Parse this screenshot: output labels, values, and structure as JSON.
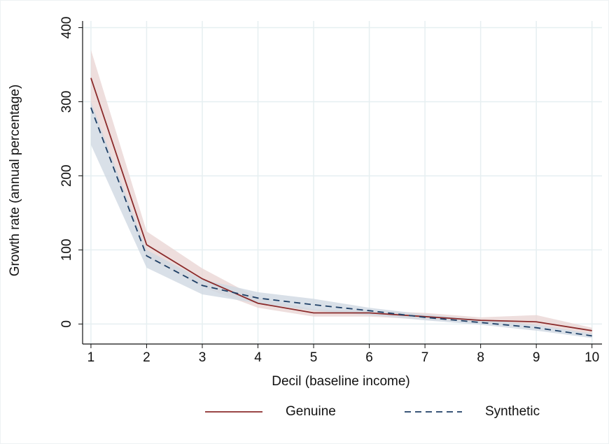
{
  "chart_data": {
    "type": "line",
    "x_label": "Decil (baseline income)",
    "y_label": "Growth rate (annual percentage)",
    "x": [
      1,
      2,
      3,
      4,
      5,
      6,
      7,
      8,
      9,
      10
    ],
    "series": [
      {
        "name": "Genuine",
        "color": "#8b2b2b",
        "line_style": "solid",
        "band_color": "#ead6d4",
        "values": [
          332,
          107,
          61,
          28,
          15,
          15,
          10,
          5,
          3,
          -9
        ],
        "lower": [
          295,
          90,
          50,
          22,
          10,
          10,
          6,
          2,
          -2,
          -14
        ],
        "upper": [
          370,
          125,
          75,
          35,
          20,
          18,
          15,
          9,
          12,
          -5
        ]
      },
      {
        "name": "Synthetic",
        "color": "#1e3f66",
        "line_style": "dashed",
        "band_color": "#cfd8e2",
        "values": [
          292,
          92,
          52,
          35,
          26,
          18,
          9,
          2,
          -5,
          -16
        ],
        "lower": [
          242,
          76,
          40,
          28,
          18,
          12,
          5,
          -1,
          -9,
          -19
        ],
        "upper": [
          300,
          100,
          60,
          43,
          34,
          22,
          13,
          6,
          -1,
          -13
        ]
      }
    ],
    "xlim": [
      0.85,
      10.18
    ],
    "ylim": [
      -27,
      409
    ],
    "xticks": [
      1,
      2,
      3,
      4,
      5,
      6,
      7,
      8,
      9,
      10
    ],
    "yticks": [
      0,
      100,
      200,
      300,
      400
    ],
    "grid": true,
    "legend": "bottom"
  }
}
